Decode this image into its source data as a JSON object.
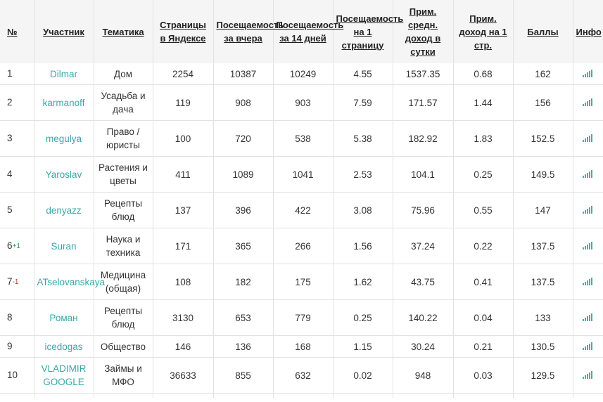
{
  "headers": {
    "num": "№",
    "participant": "Участник",
    "topic": "Тематика",
    "pages": "Страницы в Яндексе",
    "visits_yesterday": "Посещаемость за вчера",
    "visits_14": "Посещаемость за 14 дней",
    "visits_per_page": "Посещаемость на 1 страницу",
    "income_day": "Прим. средн. доход в сутки",
    "income_page": "Прим. доход на 1 стр.",
    "score": "Баллы",
    "info": "Инфо"
  },
  "rows": [
    {
      "num": "1",
      "change": "",
      "user": "Dilmar",
      "topic": "Дом",
      "pages": "2254",
      "visits_yesterday": "10387",
      "visits_14": "10249",
      "visits_per_page": "4.55",
      "income_day": "1537.35",
      "income_page": "0.68",
      "score": "162"
    },
    {
      "num": "2",
      "change": "",
      "user": "karmanoff",
      "topic": "Усадьба и дача",
      "pages": "119",
      "visits_yesterday": "908",
      "visits_14": "903",
      "visits_per_page": "7.59",
      "income_day": "171.57",
      "income_page": "1.44",
      "score": "156"
    },
    {
      "num": "3",
      "change": "",
      "user": "megulya",
      "topic": "Право / юристы",
      "pages": "100",
      "visits_yesterday": "720",
      "visits_14": "538",
      "visits_per_page": "5.38",
      "income_day": "182.92",
      "income_page": "1.83",
      "score": "152.5"
    },
    {
      "num": "4",
      "change": "",
      "user": "Yaroslav",
      "topic": "Растения и цветы",
      "pages": "411",
      "visits_yesterday": "1089",
      "visits_14": "1041",
      "visits_per_page": "2.53",
      "income_day": "104.1",
      "income_page": "0.25",
      "score": "149.5"
    },
    {
      "num": "5",
      "change": "",
      "user": "denyazz",
      "topic": "Рецепты блюд",
      "pages": "137",
      "visits_yesterday": "396",
      "visits_14": "422",
      "visits_per_page": "3.08",
      "income_day": "75.96",
      "income_page": "0.55",
      "score": "147"
    },
    {
      "num": "6",
      "change": "+1",
      "user": "Suran",
      "topic": "Наука и техника",
      "pages": "171",
      "visits_yesterday": "365",
      "visits_14": "266",
      "visits_per_page": "1.56",
      "income_day": "37.24",
      "income_page": "0.22",
      "score": "137.5"
    },
    {
      "num": "7",
      "change": "-1",
      "user": "ATselovanskaya",
      "topic": "Медицина (общая)",
      "pages": "108",
      "visits_yesterday": "182",
      "visits_14": "175",
      "visits_per_page": "1.62",
      "income_day": "43.75",
      "income_page": "0.41",
      "score": "137.5"
    },
    {
      "num": "8",
      "change": "",
      "user": "Роман",
      "topic": "Рецепты блюд",
      "pages": "3130",
      "visits_yesterday": "653",
      "visits_14": "779",
      "visits_per_page": "0.25",
      "income_day": "140.22",
      "income_page": "0.04",
      "score": "133"
    },
    {
      "num": "9",
      "change": "",
      "user": "icedogas",
      "topic": "Общество",
      "pages": "146",
      "visits_yesterday": "136",
      "visits_14": "168",
      "visits_per_page": "1.15",
      "income_day": "30.24",
      "income_page": "0.21",
      "score": "130.5"
    },
    {
      "num": "10",
      "change": "",
      "user": "VLADIMIR GOOGLE",
      "topic": "Займы и МФО",
      "pages": "36633",
      "visits_yesterday": "855",
      "visits_14": "632",
      "visits_per_page": "0.02",
      "income_day": "948",
      "income_page": "0.03",
      "score": "129.5"
    }
  ],
  "colors": {
    "link": "#39a8a8",
    "up": "#2e9a4a",
    "down": "#c0392b",
    "icon": "#3bb4a7"
  },
  "icon": "signal-bars-icon"
}
